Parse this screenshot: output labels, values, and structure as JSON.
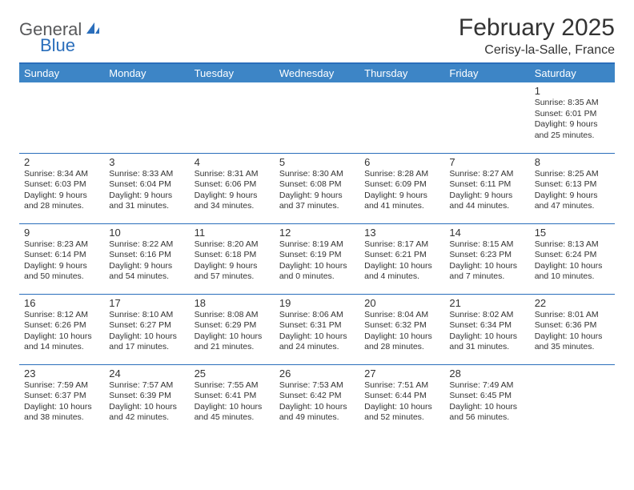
{
  "logo": {
    "part1": "General",
    "part2": "Blue"
  },
  "title": "February 2025",
  "location": "Cerisy-la-Salle, France",
  "header_bg": "#3d85c6",
  "border_color": "#2a6ebb",
  "text_color": "#333333",
  "background_color": "#ffffff",
  "day_fontsize": 13,
  "info_fontsize": 10.5,
  "days": [
    "Sunday",
    "Monday",
    "Tuesday",
    "Wednesday",
    "Thursday",
    "Friday",
    "Saturday"
  ],
  "weeks": [
    [
      null,
      null,
      null,
      null,
      null,
      null,
      {
        "n": "1",
        "sunrise": "8:35 AM",
        "sunset": "6:01 PM",
        "day_h": 9,
        "day_m": 25
      }
    ],
    [
      {
        "n": "2",
        "sunrise": "8:34 AM",
        "sunset": "6:03 PM",
        "day_h": 9,
        "day_m": 28
      },
      {
        "n": "3",
        "sunrise": "8:33 AM",
        "sunset": "6:04 PM",
        "day_h": 9,
        "day_m": 31
      },
      {
        "n": "4",
        "sunrise": "8:31 AM",
        "sunset": "6:06 PM",
        "day_h": 9,
        "day_m": 34
      },
      {
        "n": "5",
        "sunrise": "8:30 AM",
        "sunset": "6:08 PM",
        "day_h": 9,
        "day_m": 37
      },
      {
        "n": "6",
        "sunrise": "8:28 AM",
        "sunset": "6:09 PM",
        "day_h": 9,
        "day_m": 41
      },
      {
        "n": "7",
        "sunrise": "8:27 AM",
        "sunset": "6:11 PM",
        "day_h": 9,
        "day_m": 44
      },
      {
        "n": "8",
        "sunrise": "8:25 AM",
        "sunset": "6:13 PM",
        "day_h": 9,
        "day_m": 47
      }
    ],
    [
      {
        "n": "9",
        "sunrise": "8:23 AM",
        "sunset": "6:14 PM",
        "day_h": 9,
        "day_m": 50
      },
      {
        "n": "10",
        "sunrise": "8:22 AM",
        "sunset": "6:16 PM",
        "day_h": 9,
        "day_m": 54
      },
      {
        "n": "11",
        "sunrise": "8:20 AM",
        "sunset": "6:18 PM",
        "day_h": 9,
        "day_m": 57
      },
      {
        "n": "12",
        "sunrise": "8:19 AM",
        "sunset": "6:19 PM",
        "day_h": 10,
        "day_m": 0
      },
      {
        "n": "13",
        "sunrise": "8:17 AM",
        "sunset": "6:21 PM",
        "day_h": 10,
        "day_m": 4
      },
      {
        "n": "14",
        "sunrise": "8:15 AM",
        "sunset": "6:23 PM",
        "day_h": 10,
        "day_m": 7
      },
      {
        "n": "15",
        "sunrise": "8:13 AM",
        "sunset": "6:24 PM",
        "day_h": 10,
        "day_m": 10
      }
    ],
    [
      {
        "n": "16",
        "sunrise": "8:12 AM",
        "sunset": "6:26 PM",
        "day_h": 10,
        "day_m": 14
      },
      {
        "n": "17",
        "sunrise": "8:10 AM",
        "sunset": "6:27 PM",
        "day_h": 10,
        "day_m": 17
      },
      {
        "n": "18",
        "sunrise": "8:08 AM",
        "sunset": "6:29 PM",
        "day_h": 10,
        "day_m": 21
      },
      {
        "n": "19",
        "sunrise": "8:06 AM",
        "sunset": "6:31 PM",
        "day_h": 10,
        "day_m": 24
      },
      {
        "n": "20",
        "sunrise": "8:04 AM",
        "sunset": "6:32 PM",
        "day_h": 10,
        "day_m": 28
      },
      {
        "n": "21",
        "sunrise": "8:02 AM",
        "sunset": "6:34 PM",
        "day_h": 10,
        "day_m": 31
      },
      {
        "n": "22",
        "sunrise": "8:01 AM",
        "sunset": "6:36 PM",
        "day_h": 10,
        "day_m": 35
      }
    ],
    [
      {
        "n": "23",
        "sunrise": "7:59 AM",
        "sunset": "6:37 PM",
        "day_h": 10,
        "day_m": 38
      },
      {
        "n": "24",
        "sunrise": "7:57 AM",
        "sunset": "6:39 PM",
        "day_h": 10,
        "day_m": 42
      },
      {
        "n": "25",
        "sunrise": "7:55 AM",
        "sunset": "6:41 PM",
        "day_h": 10,
        "day_m": 45
      },
      {
        "n": "26",
        "sunrise": "7:53 AM",
        "sunset": "6:42 PM",
        "day_h": 10,
        "day_m": 49
      },
      {
        "n": "27",
        "sunrise": "7:51 AM",
        "sunset": "6:44 PM",
        "day_h": 10,
        "day_m": 52
      },
      {
        "n": "28",
        "sunrise": "7:49 AM",
        "sunset": "6:45 PM",
        "day_h": 10,
        "day_m": 56
      },
      null
    ]
  ]
}
